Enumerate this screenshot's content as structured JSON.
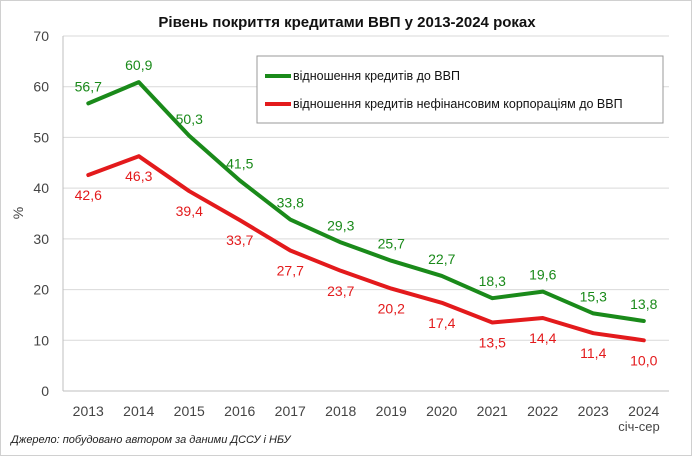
{
  "chart_data": {
    "type": "line",
    "title": "Рівень покриття кредитами ВВП у 2013-2024 роках",
    "ylabel": "%",
    "xlabel": "",
    "ylim": [
      0,
      70
    ],
    "yticks": [
      0,
      10,
      20,
      30,
      40,
      50,
      60,
      70
    ],
    "categories": [
      "2013",
      "2014",
      "2015",
      "2016",
      "2017",
      "2018",
      "2019",
      "2020",
      "2021",
      "2022",
      "2023",
      "2024"
    ],
    "series": [
      {
        "name": "відношення кредитів до ВВП",
        "color": "#1a8a1a",
        "values": [
          56.7,
          60.9,
          50.3,
          41.5,
          33.8,
          29.3,
          25.7,
          22.7,
          18.3,
          19.6,
          15.3,
          13.8
        ],
        "labels": [
          "56,7",
          "60,9",
          "50,3",
          "41,5",
          "33,8",
          "29,3",
          "25,7",
          "22,7",
          "18,3",
          "19,6",
          "15,3",
          "13,8"
        ]
      },
      {
        "name": "відношення кредитів нефінансовим корпораціям до ВВП",
        "color": "#e31a1c",
        "values": [
          42.6,
          46.3,
          39.4,
          33.7,
          27.7,
          23.7,
          20.2,
          17.4,
          13.5,
          14.4,
          11.4,
          10.0
        ],
        "labels": [
          "42,6",
          "46,3",
          "39,4",
          "33,7",
          "27,7",
          "23,7",
          "20,2",
          "17,4",
          "13,5",
          "14,4",
          "11,4",
          "10,0"
        ]
      }
    ],
    "grid": true,
    "legend_position": "top-right",
    "period_note": "січ-сер",
    "source": "Джерело: побудовано автором за даними ДССУ і НБУ"
  }
}
